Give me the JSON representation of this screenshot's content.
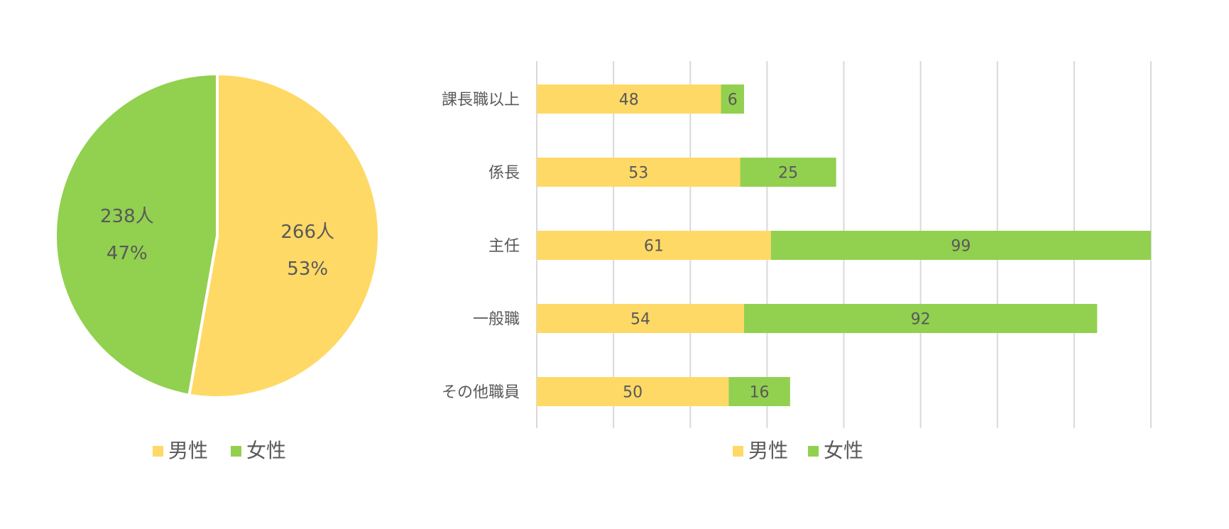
{
  "colors": {
    "male": "#FFD966",
    "female": "#92D050",
    "grid": "#D9D9D9",
    "text": "#595959"
  },
  "chart_data": [
    {
      "type": "pie",
      "categories": [
        "男性",
        "女性"
      ],
      "values": [
        266,
        238
      ],
      "value_labels": [
        "266人",
        "238人"
      ],
      "percent_labels": [
        "53%",
        "47%"
      ],
      "legend": {
        "position": "bottom",
        "entries": [
          "男性",
          "女性"
        ]
      }
    },
    {
      "type": "bar",
      "orientation": "horizontal",
      "stacked": true,
      "categories": [
        "課長職以上",
        "係長",
        "主任",
        "一般職",
        "その他職員"
      ],
      "series": [
        {
          "name": "男性",
          "values": [
            48,
            53,
            61,
            54,
            50
          ]
        },
        {
          "name": "女性",
          "values": [
            6,
            25,
            99,
            92,
            16
          ]
        }
      ],
      "xlim": [
        0,
        160
      ],
      "x_gridlines": [
        0,
        20,
        40,
        60,
        80,
        100,
        120,
        140,
        160
      ],
      "grid": true,
      "legend": {
        "position": "bottom",
        "entries": [
          "男性",
          "女性"
        ]
      }
    }
  ]
}
